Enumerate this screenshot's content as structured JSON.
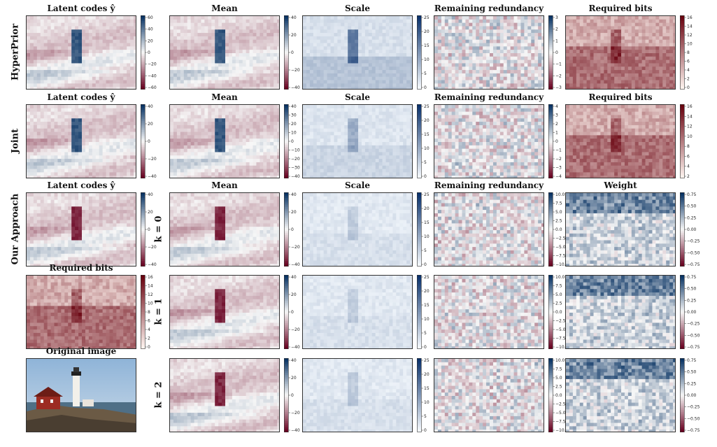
{
  "chart_data": {
    "type": "heatmap",
    "row_labels": [
      "HyperPrior",
      "Joint",
      "Our Approach"
    ],
    "k_labels": [
      "k = 0",
      "k = 1",
      "k = 2"
    ],
    "original_image_title": "Original image",
    "panels": [
      {
        "row": 0,
        "col": 0,
        "title": "Latent codes  ŷ",
        "cmap": "div",
        "ticks": [
          "60",
          "40",
          "20",
          "0",
          "−20",
          "−40",
          "−60"
        ]
      },
      {
        "row": 0,
        "col": 1,
        "title": "Mean",
        "cmap": "div",
        "ticks": [
          "40",
          "20",
          "0",
          "−20",
          "−40"
        ]
      },
      {
        "row": 0,
        "col": 2,
        "title": "Scale",
        "cmap": "blue",
        "ticks": [
          "25",
          "20",
          "15",
          "10",
          "5",
          "0"
        ]
      },
      {
        "row": 0,
        "col": 3,
        "title": "Remaining redundancy",
        "cmap": "div",
        "ticks": [
          "3",
          "2",
          "1",
          "0",
          "−1",
          "−2",
          "−3"
        ]
      },
      {
        "row": 0,
        "col": 4,
        "title": "Required bits",
        "cmap": "red",
        "ticks": [
          "16",
          "14",
          "12",
          "10",
          "8",
          "6",
          "4",
          "2",
          "0"
        ]
      },
      {
        "row": 1,
        "col": 0,
        "title": "Latent codes  ŷ",
        "cmap": "div",
        "ticks": [
          "40",
          "20",
          "0",
          "−20",
          "−40"
        ]
      },
      {
        "row": 1,
        "col": 1,
        "title": "Mean",
        "cmap": "div",
        "ticks": [
          "40",
          "30",
          "20",
          "10",
          "0",
          "−10",
          "−20",
          "−30",
          "−40"
        ]
      },
      {
        "row": 1,
        "col": 2,
        "title": "Scale",
        "cmap": "blue",
        "ticks": [
          "25",
          "20",
          "15",
          "10",
          "5",
          "0"
        ]
      },
      {
        "row": 1,
        "col": 3,
        "title": "Remaining redundancy",
        "cmap": "div",
        "ticks": [
          "4",
          "3",
          "2",
          "1",
          "0",
          "−1",
          "−2",
          "−3",
          "−4"
        ]
      },
      {
        "row": 1,
        "col": 4,
        "title": "Required bits",
        "cmap": "red",
        "ticks": [
          "16",
          "14",
          "12",
          "10",
          "8",
          "6",
          "4",
          "2"
        ]
      },
      {
        "row": 2,
        "col": 0,
        "title": "Latent codes  ŷ",
        "cmap": "div",
        "ticks": [
          "40",
          "20",
          "0",
          "−20",
          "−40"
        ]
      },
      {
        "row": 2,
        "col": 1,
        "title": "Mean",
        "cmap": "div",
        "ticks": [
          "40",
          "20",
          "0",
          "−20",
          "−40"
        ]
      },
      {
        "row": 2,
        "col": 2,
        "title": "Scale",
        "cmap": "blue",
        "ticks": [
          "25",
          "20",
          "15",
          "10",
          "5",
          "0"
        ]
      },
      {
        "row": 2,
        "col": 3,
        "title": "Remaining redundancy",
        "cmap": "div",
        "ticks": [
          "10.0",
          "7.5",
          "5.0",
          "2.5",
          "0.0",
          "−2.5",
          "−5.0",
          "−7.5",
          "−10.0"
        ]
      },
      {
        "row": 2,
        "col": 4,
        "title": "Weight",
        "cmap": "div",
        "ticks": [
          "0.75",
          "0.50",
          "0.25",
          "0.00",
          "−0.25",
          "−0.50",
          "−0.75"
        ]
      },
      {
        "row": 3,
        "col": 0,
        "title": "Required bits",
        "cmap": "red",
        "ticks": [
          "16",
          "14",
          "12",
          "10",
          "8",
          "6",
          "4",
          "2",
          "0"
        ]
      },
      {
        "row": 3,
        "col": 1,
        "title": "",
        "cmap": "div",
        "ticks": [
          "40",
          "20",
          "0",
          "−20",
          "−40"
        ]
      },
      {
        "row": 3,
        "col": 2,
        "title": "",
        "cmap": "blue",
        "ticks": [
          "25",
          "20",
          "15",
          "10",
          "5",
          "0"
        ]
      },
      {
        "row": 3,
        "col": 3,
        "title": "",
        "cmap": "div",
        "ticks": [
          "10.0",
          "7.5",
          "5.0",
          "2.5",
          "0.0",
          "−2.5",
          "−5.0",
          "−7.5",
          "−10.0"
        ]
      },
      {
        "row": 3,
        "col": 4,
        "title": "",
        "cmap": "div",
        "ticks": [
          "0.75",
          "0.50",
          "0.25",
          "0.00",
          "−0.25",
          "−0.50",
          "−0.75"
        ]
      },
      {
        "row": 4,
        "col": 1,
        "title": "",
        "cmap": "div",
        "ticks": [
          "40",
          "20",
          "0",
          "−20",
          "−40"
        ]
      },
      {
        "row": 4,
        "col": 2,
        "title": "",
        "cmap": "blue",
        "ticks": [
          "25",
          "20",
          "15",
          "10",
          "5",
          "0"
        ]
      },
      {
        "row": 4,
        "col": 3,
        "title": "",
        "cmap": "div",
        "ticks": [
          "10.0",
          "7.5",
          "5.0",
          "2.5",
          "0.0",
          "−2.5",
          "−5.0",
          "−7.5",
          "−10.0"
        ]
      },
      {
        "row": 4,
        "col": 4,
        "title": "",
        "cmap": "div",
        "ticks": [
          "0.75",
          "0.50",
          "0.25",
          "0.00",
          "−0.25",
          "−0.50",
          "−0.75"
        ]
      }
    ]
  },
  "colors": {
    "div_low": "#67001f",
    "div_mid": "#f7f7f7",
    "div_high": "#053061",
    "red_high": "#67000d",
    "red_low": "#fff5f0",
    "blue_high": "#08306b",
    "blue_low": "#f7fbff"
  }
}
